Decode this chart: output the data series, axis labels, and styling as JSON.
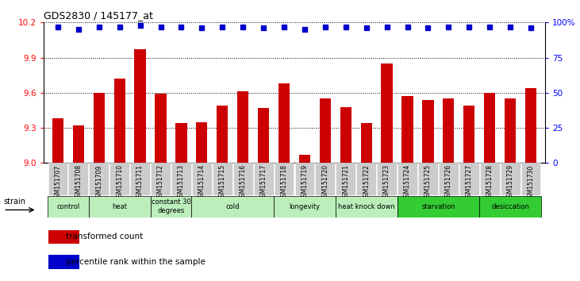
{
  "title": "GDS2830 / 145177_at",
  "samples": [
    "GSM151707",
    "GSM151708",
    "GSM151709",
    "GSM151710",
    "GSM151711",
    "GSM151712",
    "GSM151713",
    "GSM151714",
    "GSM151715",
    "GSM151716",
    "GSM151717",
    "GSM151718",
    "GSM151719",
    "GSM151720",
    "GSM151721",
    "GSM151722",
    "GSM151723",
    "GSM151724",
    "GSM151725",
    "GSM151726",
    "GSM151727",
    "GSM151728",
    "GSM151729",
    "GSM151730"
  ],
  "bar_values": [
    9.38,
    9.32,
    9.6,
    9.72,
    9.97,
    9.59,
    9.34,
    9.35,
    9.49,
    9.61,
    9.47,
    9.68,
    9.07,
    9.55,
    9.48,
    9.34,
    9.85,
    9.57,
    9.54,
    9.55,
    9.49,
    9.6,
    9.55,
    9.64
  ],
  "percentile_values": [
    97,
    95,
    97,
    97,
    98,
    97,
    97,
    96,
    97,
    97,
    96,
    97,
    95,
    97,
    97,
    96,
    97,
    97,
    96,
    97,
    97,
    97,
    97,
    96
  ],
  "ylim_left": [
    9.0,
    10.2
  ],
  "ylim_right": [
    0,
    100
  ],
  "yticks_left": [
    9.0,
    9.3,
    9.6,
    9.9,
    10.2
  ],
  "yticks_right": [
    0,
    25,
    50,
    75,
    100
  ],
  "bar_color": "#cc0000",
  "dot_color": "#0000cc",
  "groups_def": [
    {
      "label": "control",
      "indices": [
        0,
        1
      ],
      "color": "#bbeebb"
    },
    {
      "label": "heat",
      "indices": [
        2,
        3,
        4
      ],
      "color": "#bbeebb"
    },
    {
      "label": "constant 30\ndegrees",
      "indices": [
        5,
        6
      ],
      "color": "#bbeebb"
    },
    {
      "label": "cold",
      "indices": [
        7,
        8,
        9,
        10
      ],
      "color": "#bbeebb"
    },
    {
      "label": "longevity",
      "indices": [
        11,
        12,
        13
      ],
      "color": "#bbeebb"
    },
    {
      "label": "heat knock down",
      "indices": [
        14,
        15,
        16
      ],
      "color": "#bbeebb"
    },
    {
      "label": "starvation",
      "indices": [
        17,
        18,
        19,
        20
      ],
      "color": "#33cc33"
    },
    {
      "label": "desiccation",
      "indices": [
        21,
        22,
        23
      ],
      "color": "#33cc33"
    }
  ],
  "legend_bar_label": "transformed count",
  "legend_dot_label": "percentile rank within the sample",
  "strain_label": "strain"
}
